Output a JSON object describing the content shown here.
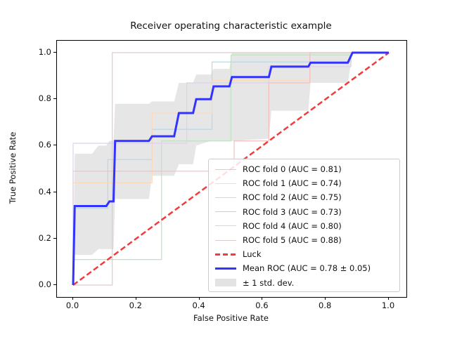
{
  "title": "Receiver operating characteristic example",
  "axes": {
    "xlabel": "False Positive Rate",
    "ylabel": "True Positive Rate",
    "xticks": [
      {
        "value": 0,
        "label": "0.0"
      },
      {
        "value": 0.2,
        "label": "0.2"
      },
      {
        "value": 0.4,
        "label": "0.4"
      },
      {
        "value": 0.6,
        "label": "0.6"
      },
      {
        "value": 0.8,
        "label": "0.8"
      },
      {
        "value": 1.0,
        "label": "1.0"
      }
    ],
    "yticks": [
      {
        "value": 0,
        "label": "0.0"
      },
      {
        "value": 0.2,
        "label": "0.2"
      },
      {
        "value": 0.4,
        "label": "0.4"
      },
      {
        "value": 0.6,
        "label": "0.6"
      },
      {
        "value": 0.8,
        "label": "0.8"
      },
      {
        "value": 1.0,
        "label": "1.0"
      }
    ],
    "xlim": [
      -0.05,
      1.05
    ],
    "ylim": [
      -0.05,
      1.05
    ],
    "grid": false
  },
  "chart_data": {
    "type": "line",
    "title": "Receiver operating characteristic example",
    "xlabel": "False Positive Rate",
    "ylabel": "True Positive Rate",
    "xlim": [
      -0.05,
      1.05
    ],
    "ylim": [
      -0.05,
      1.05
    ],
    "legend_position": "lower right",
    "series": [
      {
        "name": "ROC fold 0 (AUC = 0.81)",
        "auc": 0.81,
        "color": "#bcd6e8",
        "width": 1.2,
        "dash": "",
        "points": [
          [
            0,
            0
          ],
          [
            0,
            0.33
          ],
          [
            0.11,
            0.33
          ],
          [
            0.11,
            0.54
          ],
          [
            0.25,
            0.54
          ],
          [
            0.25,
            0.67
          ],
          [
            0.44,
            0.67
          ],
          [
            0.44,
            0.96
          ],
          [
            0.88,
            0.96
          ],
          [
            0.88,
            1
          ],
          [
            1,
            1
          ]
        ]
      },
      {
        "name": "ROC fold 1 (AUC = 0.74)",
        "auc": 0.74,
        "color": "#ffd8b7",
        "width": 1.2,
        "dash": "",
        "points": [
          [
            0,
            0
          ],
          [
            0,
            0.44
          ],
          [
            0.25,
            0.44
          ],
          [
            0.25,
            0.74
          ],
          [
            0.44,
            0.74
          ],
          [
            0.44,
            0.88
          ],
          [
            0.75,
            0.88
          ],
          [
            0.75,
            1
          ],
          [
            1,
            1
          ]
        ]
      },
      {
        "name": "ROC fold 2 (AUC = 0.75)",
        "auc": 0.75,
        "color": "#c0e2c0",
        "width": 1.2,
        "dash": "",
        "points": [
          [
            0,
            0
          ],
          [
            0,
            0.11
          ],
          [
            0.28,
            0.11
          ],
          [
            0.28,
            0.62
          ],
          [
            0.5,
            0.62
          ],
          [
            0.5,
            0.99
          ],
          [
            0.88,
            0.99
          ],
          [
            0.88,
            1
          ],
          [
            1,
            1
          ]
        ]
      },
      {
        "name": "ROC fold 3 (AUC = 0.73)",
        "auc": 0.73,
        "color": "#f2bebe",
        "width": 1.2,
        "dash": "",
        "points": [
          [
            0,
            0
          ],
          [
            0,
            0.49
          ],
          [
            0.51,
            0.49
          ],
          [
            0.51,
            0.62
          ],
          [
            0.62,
            0.62
          ],
          [
            0.62,
            0.87
          ],
          [
            0.75,
            0.87
          ],
          [
            0.75,
            1
          ],
          [
            1,
            1
          ]
        ]
      },
      {
        "name": "ROC fold 4 (AUC = 0.80)",
        "auc": 0.8,
        "color": "#ded1eb",
        "width": 1.2,
        "dash": "",
        "points": [
          [
            0,
            0
          ],
          [
            0,
            0.61
          ],
          [
            0.36,
            0.61
          ],
          [
            0.36,
            0.87
          ],
          [
            0.62,
            0.87
          ],
          [
            0.62,
            0.94
          ],
          [
            0.88,
            0.94
          ],
          [
            0.88,
            1
          ],
          [
            1,
            1
          ]
        ]
      },
      {
        "name": "ROC fold 5 (AUC = 0.88)",
        "auc": 0.88,
        "color": "#dcccc9",
        "width": 1.2,
        "dash": "",
        "points": [
          [
            0,
            0
          ],
          [
            0.124,
            0
          ],
          [
            0.124,
            1
          ],
          [
            1,
            1
          ]
        ]
      },
      {
        "name": "Luck",
        "color": "#f23b3b",
        "width": 2.5,
        "dash": "8,4",
        "points": [
          [
            0,
            0
          ],
          [
            1,
            1
          ]
        ]
      },
      {
        "name": "Mean ROC (AUC = 0.78 ± 0.05)",
        "auc_mean": 0.78,
        "auc_std": 0.05,
        "color": "#3333ff",
        "width": 3,
        "dash": "",
        "points": [
          [
            0,
            0
          ],
          [
            0.005,
            0.34
          ],
          [
            0.105,
            0.34
          ],
          [
            0.115,
            0.36
          ],
          [
            0.128,
            0.36
          ],
          [
            0.133,
            0.62
          ],
          [
            0.24,
            0.62
          ],
          [
            0.25,
            0.64
          ],
          [
            0.32,
            0.64
          ],
          [
            0.335,
            0.74
          ],
          [
            0.38,
            0.74
          ],
          [
            0.39,
            0.8
          ],
          [
            0.436,
            0.8
          ],
          [
            0.445,
            0.855
          ],
          [
            0.495,
            0.855
          ],
          [
            0.503,
            0.895
          ],
          [
            0.62,
            0.895
          ],
          [
            0.628,
            0.94
          ],
          [
            0.745,
            0.94
          ],
          [
            0.752,
            0.957
          ],
          [
            0.87,
            0.957
          ],
          [
            0.885,
            1.0
          ],
          [
            1.0,
            1.0
          ]
        ]
      }
    ],
    "band": {
      "name": "± 1 std. dev.",
      "color": "#808080",
      "opacity": 0.2,
      "upper": [
        [
          0,
          0
        ],
        [
          0.005,
          0.565
        ],
        [
          0.06,
          0.565
        ],
        [
          0.08,
          0.6
        ],
        [
          0.105,
          0.6
        ],
        [
          0.115,
          0.62
        ],
        [
          0.128,
          0.62
        ],
        [
          0.133,
          0.78
        ],
        [
          0.24,
          0.78
        ],
        [
          0.25,
          0.79
        ],
        [
          0.32,
          0.79
        ],
        [
          0.335,
          0.87
        ],
        [
          0.38,
          0.87
        ],
        [
          0.39,
          0.906
        ],
        [
          0.436,
          0.906
        ],
        [
          0.445,
          0.93
        ],
        [
          0.495,
          0.93
        ],
        [
          0.503,
          1.0
        ],
        [
          0.885,
          1.0
        ]
      ],
      "lower": [
        [
          0,
          0
        ],
        [
          0.005,
          0.13
        ],
        [
          0.06,
          0.13
        ],
        [
          0.08,
          0.155
        ],
        [
          0.128,
          0.155
        ],
        [
          0.133,
          0.37
        ],
        [
          0.24,
          0.37
        ],
        [
          0.25,
          0.47
        ],
        [
          0.32,
          0.47
        ],
        [
          0.335,
          0.52
        ],
        [
          0.38,
          0.52
        ],
        [
          0.39,
          0.6
        ],
        [
          0.436,
          0.62
        ],
        [
          0.503,
          0.62
        ],
        [
          0.62,
          0.63
        ],
        [
          0.628,
          0.75
        ],
        [
          0.745,
          0.75
        ],
        [
          0.752,
          0.87
        ],
        [
          0.87,
          0.87
        ],
        [
          0.885,
          1.0
        ]
      ]
    }
  },
  "legend": {
    "items": [
      {
        "label": "ROC fold 0 (AUC = 0.81)",
        "type": "line",
        "color": "#bcd6e8"
      },
      {
        "label": "ROC fold 1 (AUC = 0.74)",
        "type": "line",
        "color": "#ffd8b7"
      },
      {
        "label": "ROC fold 2 (AUC = 0.75)",
        "type": "line",
        "color": "#c0e2c0"
      },
      {
        "label": "ROC fold 3 (AUC = 0.73)",
        "type": "line",
        "color": "#f2bebe"
      },
      {
        "label": "ROC fold 4 (AUC = 0.80)",
        "type": "line",
        "color": "#ded1eb"
      },
      {
        "label": "ROC fold 5 (AUC = 0.88)",
        "type": "line",
        "color": "#dcccc9"
      },
      {
        "label": "Luck",
        "type": "dashed",
        "color": "#f23b3b"
      },
      {
        "label": "Mean ROC (AUC = 0.78 ± 0.05)",
        "type": "thick",
        "color": "#3333ff"
      },
      {
        "label": "± 1 std. dev.",
        "type": "patch",
        "color": "#e3e3e3"
      }
    ]
  },
  "colors": {
    "mean_roc": "#3333ff",
    "luck": "#f23b3b",
    "std_band": "#808080",
    "background": "#ffffff"
  }
}
